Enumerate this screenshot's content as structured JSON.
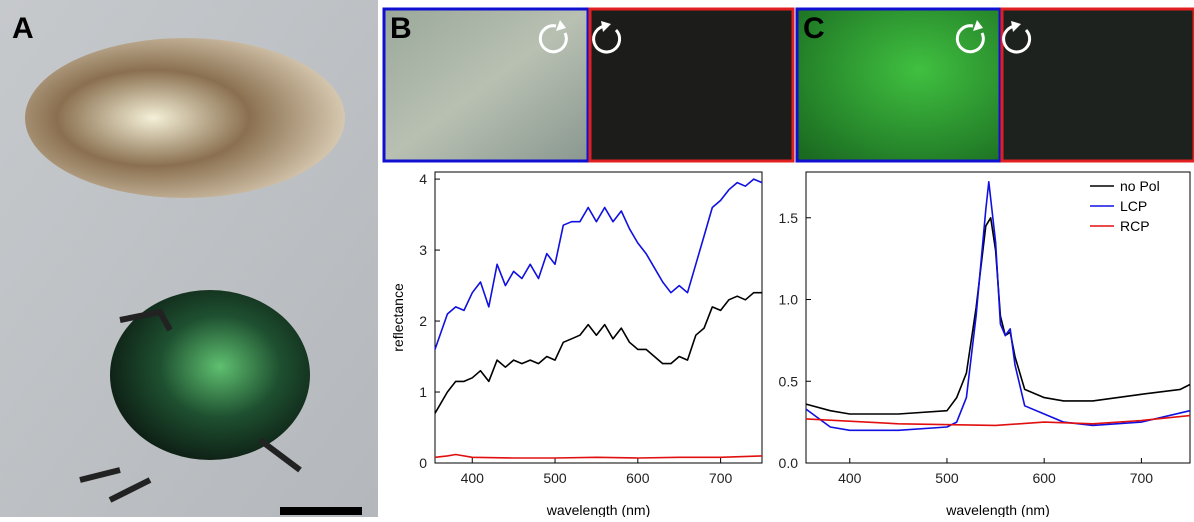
{
  "panels": {
    "a": "A",
    "b": "B",
    "c": "C"
  },
  "chart_data": [
    {
      "type": "line",
      "xlabel": "wavelength (nm)",
      "ylabel": "reflectance",
      "xlim": [
        355,
        750
      ],
      "ylim": [
        0,
        4.1
      ],
      "xticks": [
        400,
        500,
        600,
        700
      ],
      "yticks": [
        0,
        1,
        2,
        3,
        4
      ],
      "series": [
        {
          "color": "#1010e0",
          "x": [
            355,
            370,
            380,
            390,
            400,
            410,
            420,
            430,
            440,
            450,
            460,
            470,
            480,
            490,
            500,
            510,
            520,
            530,
            540,
            550,
            560,
            570,
            580,
            590,
            600,
            610,
            620,
            630,
            640,
            650,
            660,
            670,
            680,
            690,
            700,
            710,
            720,
            730,
            740,
            750
          ],
          "values": [
            1.6,
            2.1,
            2.2,
            2.15,
            2.4,
            2.55,
            2.2,
            2.8,
            2.5,
            2.7,
            2.6,
            2.8,
            2.6,
            2.95,
            2.8,
            3.35,
            3.4,
            3.4,
            3.6,
            3.4,
            3.6,
            3.4,
            3.55,
            3.3,
            3.1,
            2.95,
            2.75,
            2.55,
            2.4,
            2.5,
            2.4,
            2.8,
            3.2,
            3.6,
            3.7,
            3.85,
            3.95,
            3.9,
            4.0,
            3.95
          ]
        },
        {
          "color": "#000000",
          "x": [
            355,
            370,
            380,
            390,
            400,
            410,
            420,
            430,
            440,
            450,
            460,
            470,
            480,
            490,
            500,
            510,
            520,
            530,
            540,
            550,
            560,
            570,
            580,
            590,
            600,
            610,
            620,
            630,
            640,
            650,
            660,
            670,
            680,
            690,
            700,
            710,
            720,
            730,
            740,
            750
          ],
          "values": [
            0.7,
            1.0,
            1.15,
            1.15,
            1.2,
            1.3,
            1.15,
            1.45,
            1.35,
            1.45,
            1.4,
            1.45,
            1.4,
            1.5,
            1.45,
            1.7,
            1.75,
            1.8,
            1.95,
            1.8,
            1.95,
            1.75,
            1.9,
            1.7,
            1.6,
            1.6,
            1.5,
            1.4,
            1.4,
            1.5,
            1.45,
            1.8,
            1.9,
            2.2,
            2.15,
            2.3,
            2.35,
            2.3,
            2.4,
            2.4
          ]
        },
        {
          "color": "#e01010",
          "x": [
            355,
            370,
            380,
            400,
            450,
            500,
            550,
            600,
            650,
            700,
            750
          ],
          "values": [
            0.08,
            0.1,
            0.12,
            0.08,
            0.07,
            0.07,
            0.08,
            0.07,
            0.08,
            0.08,
            0.1
          ]
        }
      ]
    },
    {
      "type": "line",
      "xlabel": "wavelength (nm)",
      "xlim": [
        355,
        750
      ],
      "ylim": [
        0,
        1.78
      ],
      "xticks": [
        400,
        500,
        600,
        700
      ],
      "yticks": [
        {
          "value": 0,
          "label": "0.0"
        },
        0.5,
        {
          "value": 1,
          "label": "1.0"
        },
        1.5
      ],
      "series": [
        {
          "name": "no Pol",
          "color": "#000000",
          "x": [
            355,
            380,
            400,
            450,
            500,
            510,
            520,
            530,
            540,
            545,
            550,
            555,
            560,
            565,
            570,
            580,
            600,
            620,
            650,
            700,
            740,
            750
          ],
          "values": [
            0.36,
            0.32,
            0.3,
            0.3,
            0.32,
            0.4,
            0.55,
            0.95,
            1.45,
            1.5,
            1.3,
            0.9,
            0.78,
            0.8,
            0.65,
            0.45,
            0.4,
            0.38,
            0.38,
            0.42,
            0.45,
            0.48
          ]
        },
        {
          "name": "LCP",
          "color": "#1010e0",
          "x": [
            355,
            380,
            400,
            450,
            500,
            510,
            520,
            530,
            540,
            543,
            550,
            555,
            560,
            565,
            570,
            580,
            600,
            620,
            650,
            700,
            750
          ],
          "values": [
            0.33,
            0.22,
            0.2,
            0.2,
            0.22,
            0.25,
            0.4,
            0.9,
            1.55,
            1.72,
            1.35,
            0.85,
            0.78,
            0.82,
            0.6,
            0.35,
            0.3,
            0.25,
            0.23,
            0.25,
            0.32
          ]
        },
        {
          "name": "RCP",
          "color": "#e01010",
          "x": [
            355,
            450,
            550,
            600,
            650,
            700,
            750
          ],
          "values": [
            0.27,
            0.24,
            0.23,
            0.25,
            0.24,
            0.26,
            0.29
          ]
        }
      ]
    }
  ]
}
